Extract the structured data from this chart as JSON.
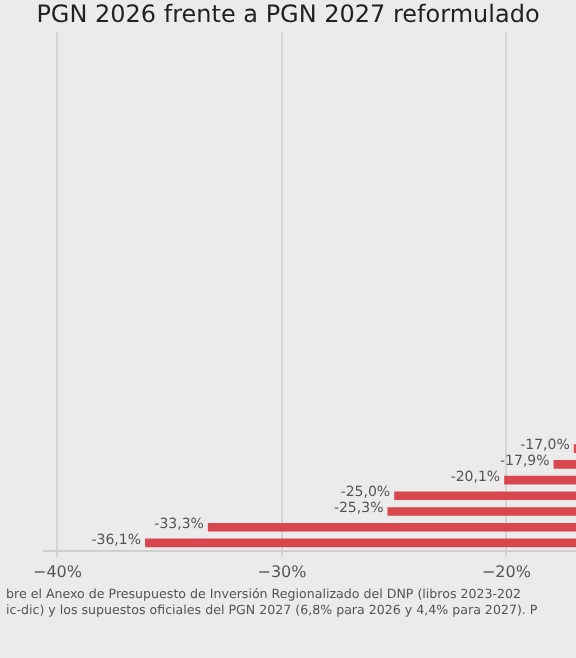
{
  "chart_data": {
    "type": "bar",
    "orientation": "horizontal",
    "title": "PGN 2026 frente a PGN 2027 reformulado",
    "categories": [
      null,
      null,
      null,
      null,
      null,
      null,
      null,
      null,
      null,
      null,
      null,
      null,
      null,
      null,
      null,
      null,
      null,
      null,
      null,
      null,
      null,
      null,
      null,
      null,
      null,
      null,
      null,
      null,
      null,
      null,
      null,
      null,
      null
    ],
    "values": [
      null,
      null,
      null,
      null,
      null,
      null,
      null,
      null,
      null,
      null,
      null,
      null,
      null,
      null,
      null,
      null,
      null,
      null,
      null,
      null,
      null,
      null,
      null,
      null,
      null,
      null,
      -17.0,
      -17.9,
      -20.1,
      -25.0,
      -25.3,
      -33.3,
      -36.1
    ],
    "value_labels": [
      null,
      null,
      null,
      null,
      null,
      null,
      null,
      null,
      null,
      null,
      null,
      null,
      null,
      null,
      null,
      null,
      null,
      null,
      null,
      null,
      null,
      null,
      null,
      null,
      null,
      null,
      "-17,0%",
      "-17,9%",
      "-20,1%",
      "-25,0%",
      "-25,3%",
      "-33,3%",
      "-36,1%"
    ],
    "color": "#d8474e",
    "xlim": [
      -40.6,
      -16.9
    ],
    "xticks": [
      {
        "value": -40,
        "label": "−40%"
      },
      {
        "value": -30,
        "label": "−30%"
      },
      {
        "value": -20,
        "label": "−20%"
      }
    ],
    "grid": "x",
    "tick_labels": "x",
    "annotations": [
      "bre el Anexo de Presupuesto de Inversión Regionalizado del DNP (libros 2023-202",
      "ic-dic) y los supuestos oficiales del PGN 2027 (6,8% para 2026 y 4,4% para 2027). P"
    ]
  }
}
